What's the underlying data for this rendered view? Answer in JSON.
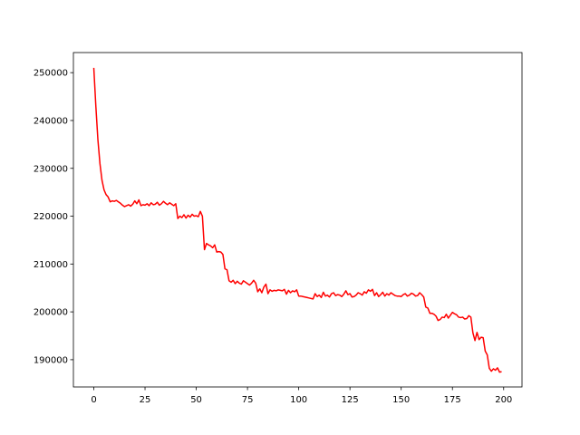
{
  "chart_data": {
    "type": "line",
    "x": [
      0,
      1,
      2,
      3,
      4,
      5,
      6,
      7,
      8,
      9,
      10,
      11,
      12,
      13,
      14,
      15,
      16,
      17,
      18,
      19,
      20,
      21,
      22,
      23,
      24,
      25,
      26,
      27,
      28,
      29,
      30,
      31,
      32,
      33,
      34,
      35,
      36,
      37,
      38,
      39,
      40,
      41,
      42,
      43,
      44,
      45,
      46,
      47,
      48,
      49,
      50,
      51,
      52,
      53,
      54,
      55,
      56,
      57,
      58,
      59,
      60,
      61,
      62,
      63,
      64,
      65,
      66,
      67,
      68,
      69,
      70,
      71,
      72,
      73,
      74,
      75,
      76,
      77,
      78,
      79,
      80,
      81,
      82,
      83,
      84,
      85,
      86,
      87,
      88,
      89,
      90,
      91,
      92,
      93,
      94,
      95,
      96,
      97,
      98,
      99,
      100,
      101,
      102,
      103,
      104,
      105,
      106,
      107,
      108,
      109,
      110,
      111,
      112,
      113,
      114,
      115,
      116,
      117,
      118,
      119,
      120,
      121,
      122,
      123,
      124,
      125,
      126,
      127,
      128,
      129,
      130,
      131,
      132,
      133,
      134,
      135,
      136,
      137,
      138,
      139,
      140,
      141,
      142,
      143,
      144,
      145,
      146,
      147,
      148,
      149,
      150,
      151,
      152,
      153,
      154,
      155,
      156,
      157,
      158,
      159,
      160,
      161,
      162,
      163,
      164,
      165,
      166,
      167,
      168,
      169,
      170,
      171,
      172,
      173,
      174,
      175,
      176,
      177,
      178,
      179,
      180,
      181,
      182,
      183,
      184,
      185,
      186,
      187,
      188,
      189,
      190,
      191,
      192,
      193,
      194,
      195,
      196,
      197,
      198,
      199
    ],
    "series": [
      {
        "color": "#ff0000",
        "values": [
          251000,
          243000,
          236000,
          231000,
          227500,
          225500,
          224500,
          224000,
          223000,
          223200,
          223100,
          223300,
          223000,
          222700,
          222300,
          222000,
          222200,
          222400,
          222100,
          222500,
          223200,
          222600,
          223400,
          222200,
          222400,
          222300,
          222600,
          222200,
          222800,
          222400,
          222500,
          222900,
          222300,
          222600,
          223100,
          222700,
          222400,
          222800,
          222500,
          222200,
          222600,
          219500,
          220000,
          219700,
          220300,
          219600,
          220200,
          219800,
          220400,
          220000,
          220100,
          219900,
          221000,
          220000,
          213000,
          214300,
          214000,
          213800,
          213400,
          214000,
          212500,
          212600,
          212500,
          212000,
          209000,
          208800,
          206500,
          206200,
          206600,
          205900,
          206400,
          206000,
          205800,
          206500,
          206200,
          205900,
          205600,
          206000,
          206600,
          206000,
          204200,
          204800,
          204000,
          205200,
          205800,
          203800,
          204600,
          204300,
          204500,
          204400,
          204600,
          204500,
          204400,
          204700,
          203700,
          204500,
          204000,
          204400,
          204200,
          204600,
          203300,
          203300,
          203200,
          203100,
          203000,
          202900,
          202800,
          202700,
          203800,
          203200,
          203500,
          203000,
          204100,
          203300,
          203500,
          203100,
          203800,
          204000,
          203400,
          203600,
          203500,
          203200,
          203700,
          204400,
          203600,
          203800,
          203100,
          203200,
          203500,
          204000,
          203800,
          203500,
          204200,
          203900,
          204600,
          204300,
          204700,
          203400,
          204000,
          203200,
          203600,
          204100,
          203300,
          203800,
          203500,
          204000,
          203700,
          203400,
          203300,
          203300,
          203200,
          203600,
          203800,
          203300,
          203500,
          203900,
          203700,
          203300,
          203400,
          204000,
          203600,
          203100,
          201000,
          200800,
          199700,
          199700,
          199500,
          199100,
          198200,
          198400,
          198900,
          198800,
          199500,
          198700,
          199300,
          199900,
          199600,
          199400,
          198900,
          198800,
          198900,
          198500,
          198600,
          199200,
          198900,
          195600,
          194000,
          195700,
          194200,
          194700,
          194600,
          191800,
          191000,
          188200,
          187600,
          188100,
          187800,
          188300,
          187400,
          187500
        ]
      }
    ],
    "xlim": [
      -9.95,
      208.95
    ],
    "xticks": [
      0,
      25,
      50,
      75,
      100,
      125,
      150,
      175,
      200
    ],
    "ylim": [
      184300,
      254200
    ],
    "yticks": [
      190000,
      200000,
      210000,
      220000,
      230000,
      240000,
      250000
    ]
  }
}
